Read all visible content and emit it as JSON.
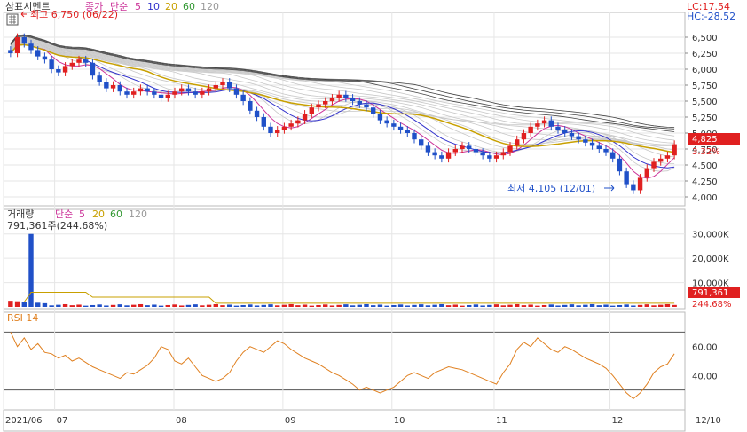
{
  "header": {
    "stock_name": "삼표시멘트",
    "price_label": "종가",
    "ma_label": "단순",
    "ma_periods": [
      "5",
      "10",
      "20",
      "60",
      "120"
    ],
    "ma_colors": [
      "#cc3399",
      "#3333cc",
      "#c8a000",
      "#339933",
      "#999999"
    ],
    "lc_text": "LC:17.54",
    "hc_text": "HC:-28.52"
  },
  "price_panel": {
    "high_annotation": "최고 6,750 (06/22)",
    "low_annotation": "최저 4,105 (12/01)",
    "current_price": "4,825",
    "change_pct": "3.32%",
    "y_ticks": [
      "6,500",
      "6,250",
      "6,000",
      "5,750",
      "5,500",
      "5,250",
      "5,000",
      "4,750",
      "4,500",
      "4,250",
      "4,000"
    ]
  },
  "volume_panel": {
    "label": "거래량",
    "ma_label": "단순",
    "ma_periods": [
      "5",
      "20",
      "60",
      "120"
    ],
    "ma_colors": [
      "#cc3399",
      "#c8a000",
      "#339933",
      "#999999"
    ],
    "value_text": "791,361주(244.68%)",
    "current_volume": "791,361",
    "volume_ratio": "244.68%",
    "y_ticks": [
      "30,000K",
      "20,000K",
      "10,000K"
    ]
  },
  "rsi_panel": {
    "label": "RSI 14",
    "y_ticks": [
      "60.00",
      "40.00"
    ]
  },
  "x_axis": {
    "labels": [
      "2021/06",
      "07",
      "08",
      "09",
      "10",
      "11",
      "12",
      "12/10"
    ]
  },
  "colors": {
    "up": "#e02020",
    "down": "#2050c8",
    "rsi_line": "#e08020",
    "price_box": "#e02020",
    "grid": "#e6e6e6"
  },
  "chart_data": {
    "type": "candlestick",
    "x_start": "2021/06",
    "x_end": "12/10",
    "price": {
      "ylim": [
        4000,
        6750
      ],
      "high": 6750,
      "high_date": "06/22",
      "low": 4105,
      "low_date": "12/01",
      "last": 4825,
      "last_change_pct": 3.32,
      "closes": [
        6250,
        6500,
        6400,
        6300,
        6200,
        6150,
        6000,
        5950,
        6050,
        6100,
        6150,
        6100,
        5900,
        5800,
        5700,
        5750,
        5650,
        5600,
        5650,
        5700,
        5650,
        5600,
        5550,
        5600,
        5650,
        5700,
        5650,
        5600,
        5650,
        5700,
        5750,
        5800,
        5700,
        5600,
        5500,
        5350,
        5250,
        5100,
        5000,
        5050,
        5100,
        5150,
        5200,
        5300,
        5400,
        5450,
        5500,
        5550,
        5600,
        5550,
        5500,
        5450,
        5400,
        5300,
        5200,
        5150,
        5100,
        5050,
        5000,
        4900,
        4800,
        4700,
        4650,
        4600,
        4700,
        4750,
        4800,
        4750,
        4700,
        4650,
        4600,
        4650,
        4700,
        4800,
        4900,
        5000,
        5100,
        5150,
        5200,
        5100,
        5050,
        5000,
        4950,
        4900,
        4850,
        4800,
        4750,
        4700,
        4600,
        4400,
        4200,
        4105,
        4300,
        4450,
        4550,
        4600,
        4650,
        4825
      ],
      "ohlc_note": "closes approximated from chart"
    },
    "volume": {
      "ylim": [
        0,
        35000
      ],
      "unit": "K",
      "peak": 30000,
      "last": 791.361
    },
    "rsi": {
      "period": 14,
      "ylim": [
        20,
        80
      ],
      "values": [
        70,
        60,
        66,
        58,
        62,
        56,
        55,
        52,
        54,
        50,
        52,
        49,
        46,
        44,
        42,
        40,
        38,
        42,
        41,
        44,
        47,
        52,
        60,
        58,
        50,
        48,
        52,
        46,
        40,
        38,
        36,
        38,
        42,
        50,
        56,
        60,
        58,
        56,
        60,
        64,
        62,
        58,
        55,
        52,
        50,
        48,
        45,
        42,
        40,
        37,
        34,
        30,
        32,
        30,
        28,
        30,
        32,
        36,
        40,
        42,
        40,
        38,
        42,
        44,
        46,
        45,
        44,
        42,
        40,
        38,
        36,
        34,
        42,
        48,
        58,
        63,
        60,
        66,
        62,
        58,
        56,
        60,
        58,
        55,
        52,
        50,
        48,
        45,
        40,
        34,
        28,
        24,
        28,
        34,
        42,
        46,
        48,
        55
      ]
    },
    "x_labels": [
      "2021/06",
      "07",
      "08",
      "09",
      "10",
      "11",
      "12",
      "12/10"
    ]
  }
}
